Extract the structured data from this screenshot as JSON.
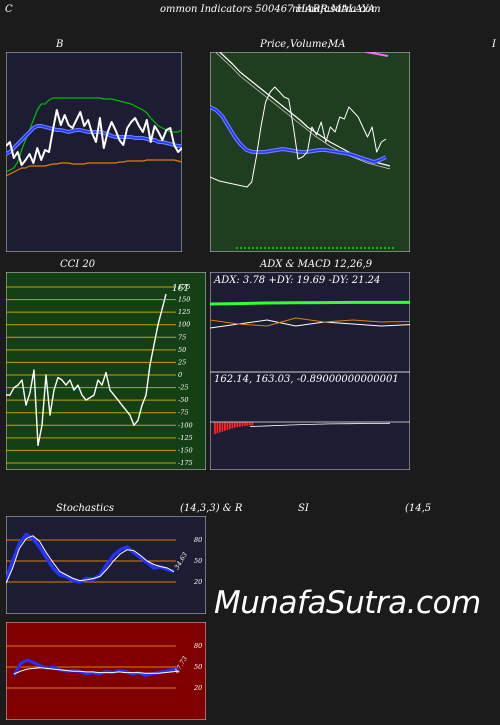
{
  "header": {
    "left_letter": "C",
    "title": "ommon  Indicators 500467 HARR.MALAYA",
    "site": "munafasutra.com"
  },
  "panels": {
    "bollinger": {
      "title": "B"
    },
    "price": {
      "title": "Price,",
      "overlay": "Volume,",
      "suffix": "MA"
    },
    "right_letter": "I",
    "cci": {
      "title": "CCI 20",
      "value_label": "161",
      "ticks": [
        "175",
        "150",
        "125",
        "100",
        "75",
        "50",
        "25",
        "0",
        "-25",
        "-50",
        "-75",
        "-100",
        "-125",
        "-150",
        "-175"
      ]
    },
    "adx": {
      "title": "ADX  & MACD 12,26,9",
      "readout": "ADX: 3.78  +DY: 19.69 -DY: 21.24"
    },
    "macd": {
      "readout": "162.14,  163.03,  -0.89000000000001"
    },
    "stoch": {
      "title": "Stochastics",
      "params": "(14,3,3) & R",
      "ticks": [
        "80",
        "50",
        "20"
      ],
      "value_label": "34.63"
    },
    "rsi": {
      "title": "SI",
      "params": "(14,5",
      "ticks": [
        "80",
        "50",
        "20"
      ],
      "value_label": "47.73"
    }
  },
  "watermark": "MunafaSutra.com",
  "colors": {
    "bollinger_bg": "#1c1c33",
    "price_bg": "#1f3d1f",
    "cci_bg": "#154015",
    "adx_bg": "#1c1c33",
    "stoch_bg": "#1c1c33",
    "rsi_bg": "#800000",
    "blue": "#2233ff",
    "green": "#00c000",
    "orange": "#e08000",
    "magenta": "#ff66ff"
  },
  "chart_data": [
    {
      "type": "line",
      "name": "bollinger",
      "series": [
        {
          "name": "close",
          "values": [
            146,
            142,
            158,
            152,
            165,
            160,
            154,
            163,
            148,
            160,
            150,
            152,
            130,
            110,
            125,
            115,
            125,
            128,
            120,
            112,
            126,
            120,
            133,
            142,
            118,
            148,
            132,
            122,
            130,
            140,
            145,
            128,
            122,
            118,
            126,
            132,
            120,
            142,
            126,
            132,
            140,
            130,
            128,
            145,
            152,
            148
          ]
        },
        {
          "name": "upper",
          "values": [
            172,
            170,
            168,
            162,
            150,
            140,
            130,
            120,
            110,
            104,
            104,
            100,
            98,
            98,
            98,
            98,
            98,
            98,
            98,
            98,
            98,
            98,
            98,
            98,
            98,
            99,
            99,
            99,
            100,
            101,
            102,
            103,
            104,
            106,
            108,
            110,
            113,
            118,
            122,
            126,
            128,
            130,
            132,
            132,
            132,
            130
          ]
        },
        {
          "name": "middle",
          "values": [
            154,
            152,
            148,
            144,
            140,
            136,
            132,
            128,
            126,
            126,
            127,
            128,
            129,
            130,
            130,
            131,
            132,
            131,
            130,
            130,
            131,
            132,
            132,
            132,
            132,
            133,
            134,
            136,
            137,
            137,
            137,
            137,
            137,
            138,
            138,
            138,
            139,
            140,
            140,
            142,
            142,
            143,
            144,
            145,
            146,
            146
          ]
        },
        {
          "name": "lower",
          "values": [
            176,
            174,
            172,
            170,
            168,
            168,
            166,
            166,
            166,
            166,
            166,
            165,
            164,
            164,
            163,
            163,
            163,
            164,
            164,
            164,
            164,
            163,
            163,
            163,
            163,
            163,
            163,
            163,
            163,
            162,
            162,
            161,
            161,
            161,
            161,
            161,
            160,
            160,
            160,
            160,
            160,
            160,
            160,
            160,
            161,
            162
          ]
        }
      ]
    },
    {
      "type": "line",
      "name": "price",
      "values": [
        100,
        98,
        96,
        95,
        94,
        93,
        92,
        91,
        90,
        95,
        120,
        150,
        175,
        185,
        190,
        185,
        180,
        178,
        150,
        118,
        120,
        125,
        150,
        142,
        155,
        135,
        150,
        145,
        160,
        158,
        170,
        165,
        160,
        150,
        140,
        150,
        125,
        135,
        138
      ]
    },
    {
      "type": "line",
      "name": "cci",
      "ylim": [
        -175,
        175
      ],
      "values": [
        -40,
        -40,
        -25,
        -20,
        -10,
        -60,
        -35,
        10,
        -140,
        -100,
        0,
        -80,
        -30,
        -5,
        -10,
        -20,
        -10,
        -30,
        -20,
        -40,
        -50,
        -45,
        -40,
        -10,
        -20,
        5,
        -30,
        -40,
        -50,
        -60,
        -70,
        -80,
        -100,
        -90,
        -60,
        -40,
        20,
        60,
        100,
        130,
        161
      ]
    },
    {
      "type": "line",
      "name": "adx",
      "series": [
        {
          "name": "ADX",
          "values": [
            3,
            3.2,
            3.5,
            3.6,
            3.7,
            3.8,
            3.8,
            3.78
          ]
        },
        {
          "name": "+DY",
          "values": [
            18,
            20,
            22,
            19,
            21,
            20,
            19,
            19.69
          ]
        },
        {
          "name": "-DY",
          "values": [
            22,
            20,
            19,
            23,
            21,
            22,
            21,
            21.24
          ]
        }
      ]
    },
    {
      "type": "bar",
      "name": "macd",
      "values": [
        -3,
        -2.8,
        -2.6,
        -2.4,
        -2.2,
        -2,
        -1.8,
        -1.6,
        -1.4,
        -1.3,
        -1.2,
        -1.1,
        -1,
        -0.95,
        -0.9,
        -0.89
      ]
    },
    {
      "type": "line",
      "name": "stochastics",
      "ylim": [
        0,
        100
      ],
      "series": [
        {
          "name": "%K",
          "values": [
            22,
            50,
            75,
            88,
            82,
            70,
            55,
            40,
            30,
            28,
            22,
            20,
            25,
            24,
            30,
            45,
            58,
            66,
            70,
            62,
            55,
            48,
            40,
            42,
            38,
            35
          ]
        },
        {
          "name": "%D",
          "values": [
            18,
            40,
            68,
            82,
            86,
            78,
            62,
            48,
            35,
            30,
            25,
            22,
            23,
            25,
            28,
            38,
            50,
            60,
            66,
            65,
            58,
            50,
            45,
            42,
            40,
            34.63
          ]
        }
      ]
    },
    {
      "type": "line",
      "name": "rsi",
      "ylim": [
        0,
        100
      ],
      "series": [
        {
          "name": "RSI",
          "values": [
            38,
            55,
            60,
            56,
            52,
            48,
            50,
            46,
            44,
            45,
            44,
            40,
            42,
            40,
            44,
            42,
            45,
            44,
            40,
            42,
            38,
            40,
            42,
            44,
            46,
            47.73
          ]
        },
        {
          "name": "MA",
          "values": [
            40,
            44,
            47,
            48,
            49,
            48,
            47,
            46,
            45,
            44,
            44,
            43,
            43,
            42,
            42,
            42,
            43,
            42,
            42,
            42,
            41,
            41,
            41,
            42,
            43,
            44
          ]
        }
      ]
    }
  ]
}
